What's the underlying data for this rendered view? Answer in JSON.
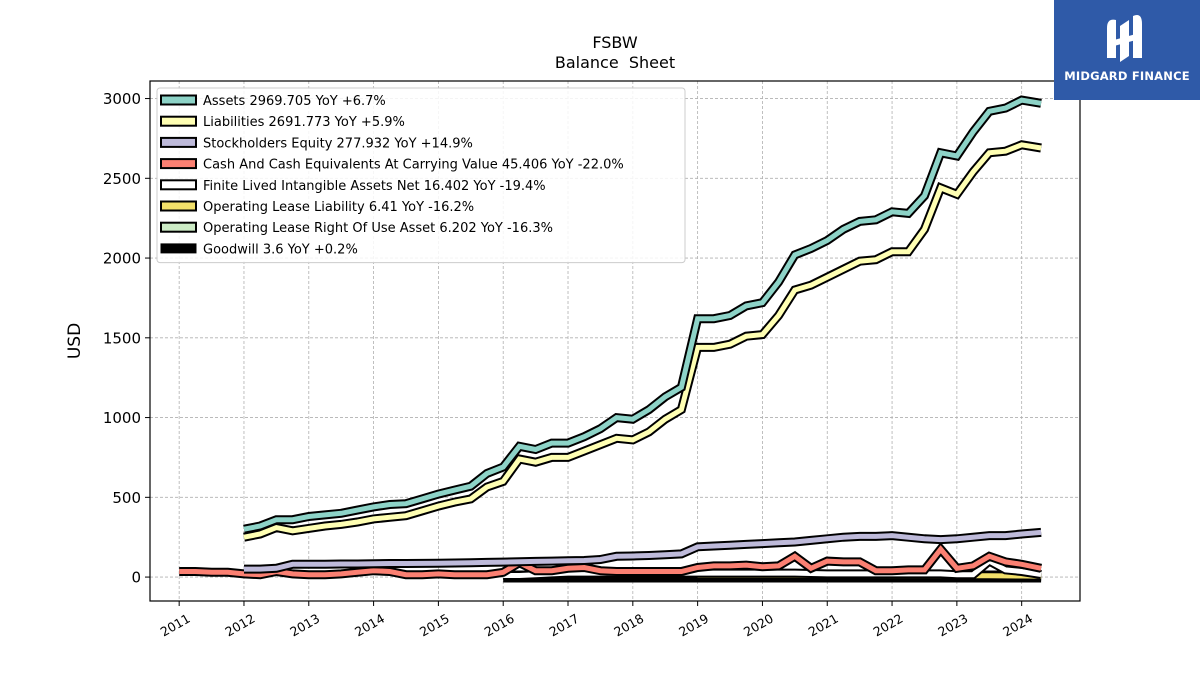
{
  "brand": {
    "name": "MIDGARD FINANCE",
    "mark_icon": "midgard-logo-icon",
    "background": "#2f5aa8"
  },
  "chart_data": {
    "type": "line",
    "title": "FSBW",
    "subtitle": "Balance  Sheet",
    "ylabel": "USD",
    "xlabel": "",
    "xlim": [
      2010.55,
      2024.9
    ],
    "ylim": [
      -150,
      3110
    ],
    "x_ticks": [
      2011,
      2012,
      2013,
      2014,
      2015,
      2016,
      2017,
      2018,
      2019,
      2020,
      2021,
      2022,
      2023,
      2024
    ],
    "x_tick_labels": [
      "2011",
      "2012",
      "2013",
      "2014",
      "2015",
      "2016",
      "2017",
      "2018",
      "2019",
      "2020",
      "2021",
      "2022",
      "2023",
      "2024"
    ],
    "y_ticks": [
      0,
      500,
      1000,
      1500,
      2000,
      2500,
      3000
    ],
    "y_tick_labels": [
      "0",
      "500",
      "1000",
      "1500",
      "2000",
      "2500",
      "3000"
    ],
    "grid": true,
    "legend_position": "top-left",
    "series": [
      {
        "name": "Assets  2969.705 YoY +6.7%",
        "color": "#8dd3c7",
        "x": [
          2012.0,
          2012.25,
          2012.5,
          2012.75,
          2013.0,
          2013.25,
          2013.5,
          2013.75,
          2014.0,
          2014.25,
          2014.5,
          2014.75,
          2015.0,
          2015.25,
          2015.5,
          2015.75,
          2016.0,
          2016.25,
          2016.5,
          2016.75,
          2017.0,
          2017.25,
          2017.5,
          2017.75,
          2018.0,
          2018.25,
          2018.5,
          2018.75,
          2019.0,
          2019.25,
          2019.5,
          2019.75,
          2020.0,
          2020.25,
          2020.5,
          2020.75,
          2021.0,
          2021.25,
          2021.5,
          2021.75,
          2022.0,
          2022.25,
          2022.5,
          2022.75,
          2023.0,
          2023.25,
          2023.5,
          2023.75,
          2024.0,
          2024.3
        ],
        "y": [
          300,
          320,
          360,
          360,
          380,
          390,
          400,
          420,
          440,
          455,
          460,
          490,
          520,
          545,
          570,
          650,
          690,
          820,
          800,
          840,
          840,
          880,
          930,
          1000,
          990,
          1050,
          1130,
          1190,
          1620,
          1620,
          1640,
          1700,
          1720,
          1850,
          2020,
          2060,
          2110,
          2180,
          2230,
          2240,
          2290,
          2280,
          2390,
          2660,
          2640,
          2790,
          2920,
          2940,
          2990,
          2970
        ]
      },
      {
        "name": "Liabilities  2691.773 YoY +5.9%",
        "color": "#ffffb3",
        "x": [
          2012.0,
          2012.25,
          2012.5,
          2012.75,
          2013.0,
          2013.25,
          2013.5,
          2013.75,
          2014.0,
          2014.25,
          2014.5,
          2014.75,
          2015.0,
          2015.25,
          2015.5,
          2015.75,
          2016.0,
          2016.25,
          2016.5,
          2016.75,
          2017.0,
          2017.25,
          2017.5,
          2017.75,
          2018.0,
          2018.25,
          2018.5,
          2018.75,
          2019.0,
          2019.25,
          2019.5,
          2019.75,
          2020.0,
          2020.25,
          2020.5,
          2020.75,
          2021.0,
          2021.25,
          2021.5,
          2021.75,
          2022.0,
          2022.25,
          2022.5,
          2022.75,
          2023.0,
          2023.25,
          2023.5,
          2023.75,
          2024.0,
          2024.3
        ],
        "y": [
          250,
          270,
          310,
          290,
          305,
          320,
          330,
          345,
          365,
          375,
          385,
          415,
          445,
          470,
          490,
          565,
          600,
          740,
          720,
          750,
          750,
          790,
          830,
          870,
          860,
          910,
          990,
          1050,
          1440,
          1440,
          1460,
          1510,
          1520,
          1640,
          1800,
          1830,
          1880,
          1930,
          1980,
          1990,
          2040,
          2040,
          2180,
          2440,
          2400,
          2540,
          2660,
          2670,
          2710,
          2690
        ]
      },
      {
        "name": "Stockholders Equity  277.932 YoY +14.9%",
        "color": "#bebada",
        "x": [
          2012.0,
          2012.25,
          2012.5,
          2012.75,
          2013.0,
          2013.25,
          2013.5,
          2013.75,
          2014.0,
          2014.25,
          2014.5,
          2014.75,
          2015.0,
          2015.25,
          2015.5,
          2015.75,
          2016.0,
          2016.25,
          2016.5,
          2016.75,
          2017.0,
          2017.25,
          2017.5,
          2017.75,
          2018.0,
          2018.25,
          2018.5,
          2018.75,
          2019.0,
          2019.25,
          2019.5,
          2019.75,
          2020.0,
          2020.25,
          2020.5,
          2020.75,
          2021.0,
          2021.25,
          2021.5,
          2021.75,
          2022.0,
          2022.25,
          2022.5,
          2022.75,
          2023.0,
          2023.25,
          2023.5,
          2023.75,
          2024.0,
          2024.3
        ],
        "y": [
          50,
          50,
          55,
          80,
          80,
          80,
          82,
          82,
          84,
          85,
          85,
          86,
          87,
          88,
          90,
          92,
          94,
          96,
          98,
          100,
          102,
          104,
          110,
          130,
          132,
          135,
          140,
          145,
          190,
          195,
          200,
          205,
          210,
          215,
          220,
          230,
          240,
          250,
          255,
          255,
          260,
          250,
          240,
          235,
          240,
          250,
          260,
          260,
          270,
          280
        ]
      },
      {
        "name": "Cash And Cash Equivalents At Carrying Value  45.406 YoY -22.0%",
        "color": "#fb8072",
        "x": [
          2011.0,
          2011.25,
          2011.5,
          2011.75,
          2012.0,
          2012.25,
          2012.5,
          2012.75,
          2013.0,
          2013.25,
          2013.5,
          2013.75,
          2014.0,
          2014.25,
          2014.5,
          2014.75,
          2015.0,
          2015.25,
          2015.5,
          2015.75,
          2016.0,
          2016.25,
          2016.5,
          2016.75,
          2017.0,
          2017.25,
          2017.5,
          2017.75,
          2018.0,
          2018.25,
          2018.5,
          2018.75,
          2019.0,
          2019.25,
          2019.5,
          2019.75,
          2020.0,
          2020.25,
          2020.5,
          2020.75,
          2021.0,
          2021.25,
          2021.5,
          2021.75,
          2022.0,
          2022.25,
          2022.5,
          2022.75,
          2023.0,
          2023.25,
          2023.5,
          2023.75,
          2024.0,
          2024.3
        ],
        "y": [
          35,
          35,
          30,
          30,
          20,
          15,
          35,
          20,
          15,
          15,
          20,
          30,
          40,
          35,
          15,
          15,
          20,
          15,
          15,
          15,
          30,
          90,
          40,
          40,
          55,
          60,
          40,
          35,
          35,
          35,
          35,
          35,
          60,
          70,
          70,
          75,
          65,
          70,
          130,
          55,
          100,
          95,
          95,
          40,
          40,
          45,
          45,
          175,
          55,
          70,
          130,
          95,
          80,
          55
        ]
      },
      {
        "name": "Finite Lived Intangible Assets Net  16.402 YoY -19.4%",
        "color": "#ffffff",
        "x": [
          2016.0,
          2016.25,
          2016.5,
          2016.75,
          2017.0,
          2017.5,
          2018.0,
          2018.5,
          2019.0,
          2019.5,
          2020.0,
          2020.5,
          2021.0,
          2021.5,
          2022.0,
          2022.5,
          2022.75,
          2023.0,
          2023.25,
          2023.5,
          2023.75,
          2024.0,
          2024.3
        ],
        "y": [
          10,
          10,
          15,
          20,
          25,
          25,
          25,
          25,
          25,
          25,
          25,
          25,
          20,
          20,
          20,
          20,
          20,
          15,
          15,
          100,
          45,
          35,
          16
        ]
      },
      {
        "name": "Operating Lease Liability  6.41 YoY -16.2%",
        "color": "#f2e06a",
        "x": [
          2019.0,
          2019.5,
          2020.0,
          2020.5,
          2021.0,
          2021.5,
          2022.0,
          2022.5,
          2023.0,
          2023.5,
          2024.0,
          2024.3
        ],
        "y": [
          12,
          12,
          11,
          11,
          10,
          10,
          9,
          9,
          8,
          8,
          7,
          6
        ]
      },
      {
        "name": "Operating Lease Right Of Use Asset  6.202 YoY -16.3%",
        "color": "#ccebc5",
        "x": [
          2019.0,
          2019.5,
          2020.0,
          2020.5,
          2021.0,
          2021.5,
          2022.0,
          2022.5,
          2023.0,
          2023.5,
          2024.0,
          2024.3
        ],
        "y": [
          12,
          12,
          11,
          11,
          10,
          10,
          9,
          9,
          8,
          8,
          7,
          6
        ]
      },
      {
        "name": "Goodwill  3.6 YoY +0.2%",
        "color": "#000000",
        "x": [
          2016.0,
          2017.0,
          2018.0,
          2019.0,
          2020.0,
          2021.0,
          2022.0,
          2023.0,
          2024.0,
          2024.3
        ],
        "y": [
          3.6,
          3.6,
          3.6,
          3.6,
          3.6,
          3.6,
          3.6,
          3.6,
          3.6,
          3.6
        ]
      }
    ]
  }
}
